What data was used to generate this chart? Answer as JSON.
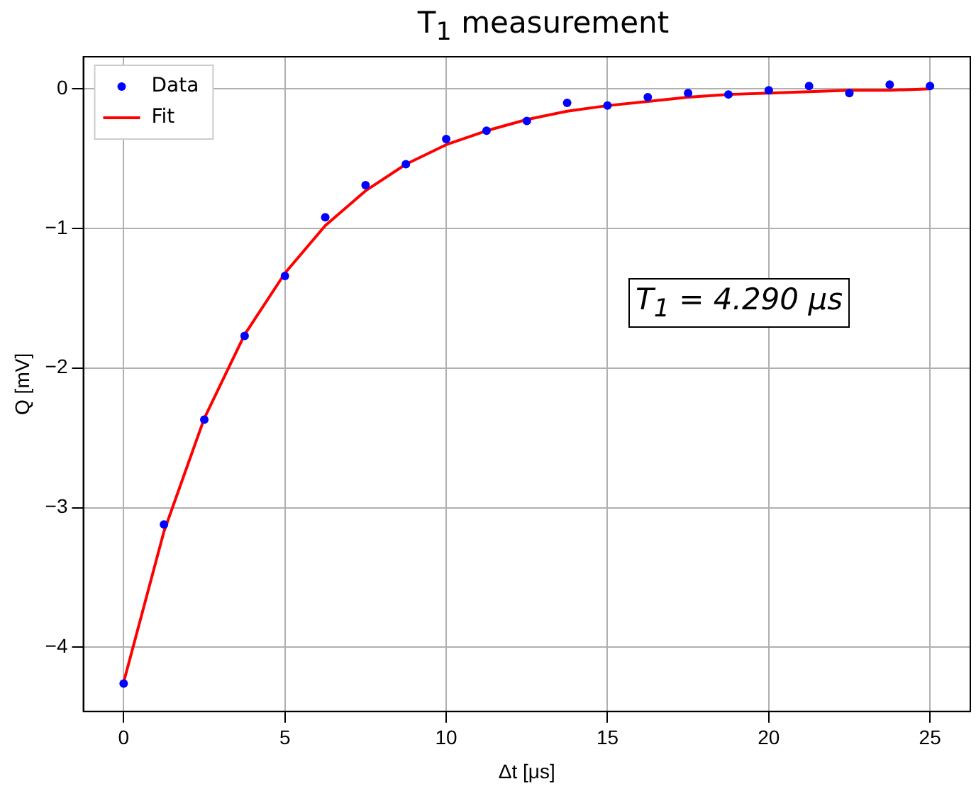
{
  "chart_data": {
    "type": "scatter",
    "title": "T$_{1}$ measurement",
    "xlabel": "Δt [μs]",
    "ylabel": "Q [mV]",
    "x": [
      0,
      1.25,
      2.5,
      3.75,
      5,
      6.25,
      7.5,
      8.75,
      10,
      11.25,
      12.5,
      13.75,
      15,
      16.25,
      17.5,
      18.75,
      20,
      21.25,
      22.5,
      23.75,
      25
    ],
    "series": [
      {
        "name": "Data",
        "color": "#0000ff",
        "marker": "circle",
        "values": [
          -4.26,
          -3.12,
          -2.37,
          -1.77,
          -1.34,
          -0.92,
          -0.69,
          -0.54,
          -0.36,
          -0.3,
          -0.23,
          -0.1,
          -0.12,
          -0.06,
          -0.03,
          -0.04,
          -0.01,
          0.02,
          -0.03,
          0.03,
          0.02
        ]
      },
      {
        "name": "Fit",
        "type": "line",
        "color": "#ff0000",
        "marker": "none",
        "values": [
          -4.25,
          -3.17,
          -2.36,
          -1.76,
          -1.32,
          -0.98,
          -0.73,
          -0.54,
          -0.4,
          -0.3,
          -0.22,
          -0.16,
          -0.12,
          -0.09,
          -0.06,
          -0.04,
          -0.03,
          -0.02,
          -0.01,
          -0.01,
          0
        ]
      }
    ],
    "xlim": [
      -1.25,
      26.25
    ],
    "xticks": [
      0,
      5,
      10,
      15,
      20,
      25
    ],
    "ylim": [
      -4.46,
      0.23
    ],
    "yticks": [
      -4,
      -3,
      -2,
      -1,
      0
    ],
    "grid": true,
    "legend": "top left",
    "annotations": [
      "T$_{1}$ = 4.290 μs"
    ]
  }
}
